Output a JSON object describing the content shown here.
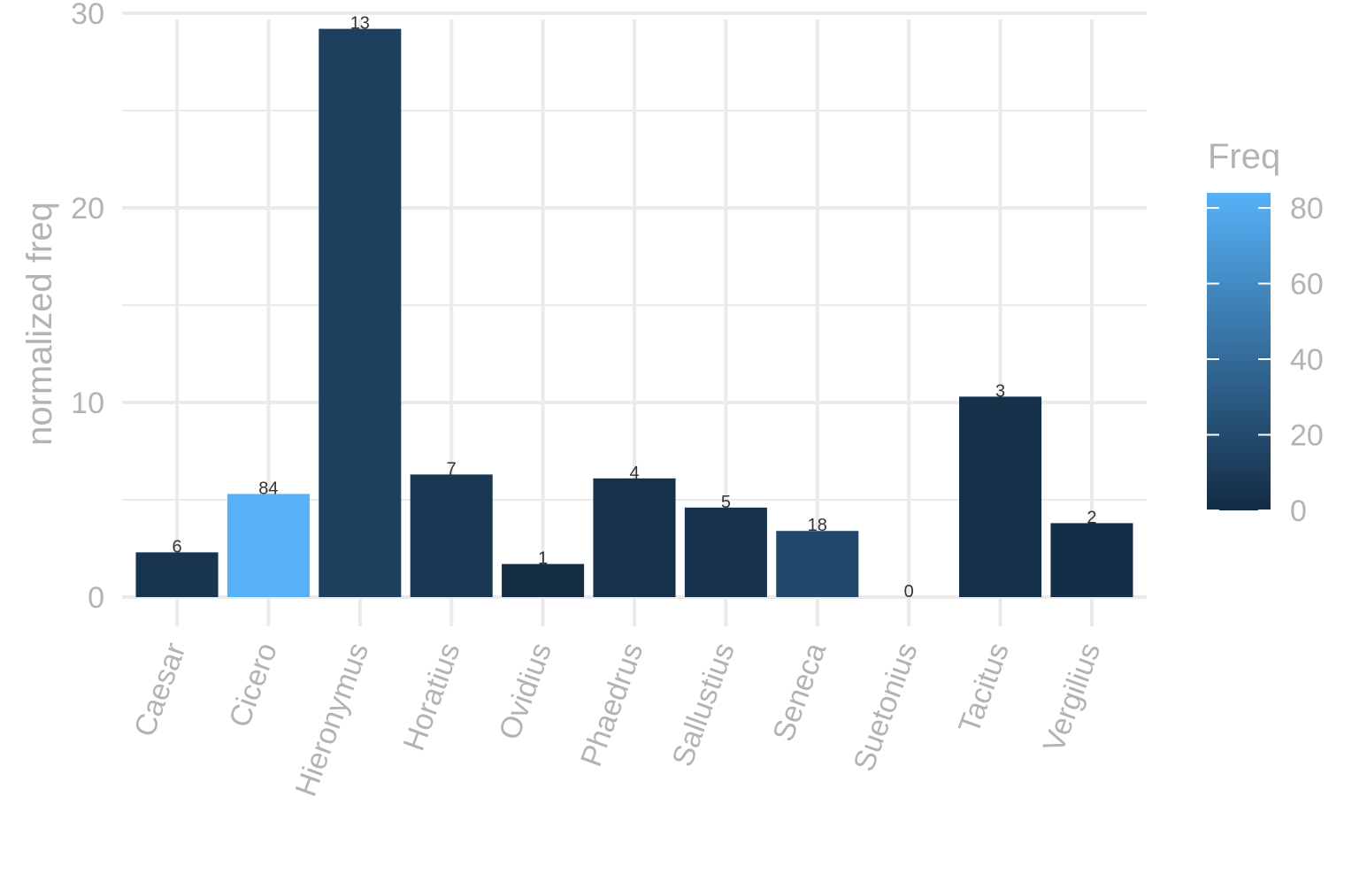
{
  "chart_data": {
    "type": "bar",
    "ylabel": "normalized freq",
    "xlabel": "",
    "ylim": [
      -1.5,
      30.5
    ],
    "yticks": [
      0,
      10,
      20,
      30
    ],
    "categories": [
      "Caesar",
      "Cicero",
      "Hieronymus",
      "Horatius",
      "Ovidius",
      "Phaedrus",
      "Sallustius",
      "Seneca",
      "Suetonius",
      "Tacitus",
      "Vergilius"
    ],
    "values": [
      2.3,
      5.3,
      29.2,
      6.3,
      1.7,
      6.1,
      4.6,
      3.4,
      0,
      10.3,
      3.8
    ],
    "labels": [
      "6",
      "84",
      "13",
      "7",
      "1",
      "4",
      "5",
      "18",
      "0",
      "3",
      "2"
    ],
    "fill_values": [
      6,
      84,
      13,
      7,
      1,
      4,
      5,
      18,
      0,
      3,
      2
    ],
    "grid": true,
    "legend": {
      "title": "Freq",
      "position": "right",
      "type": "colorbar",
      "range": [
        0,
        84
      ],
      "ticks": [
        0,
        20,
        40,
        60,
        80
      ],
      "low_color": "#132B43",
      "high_color": "#56B1F7"
    }
  }
}
